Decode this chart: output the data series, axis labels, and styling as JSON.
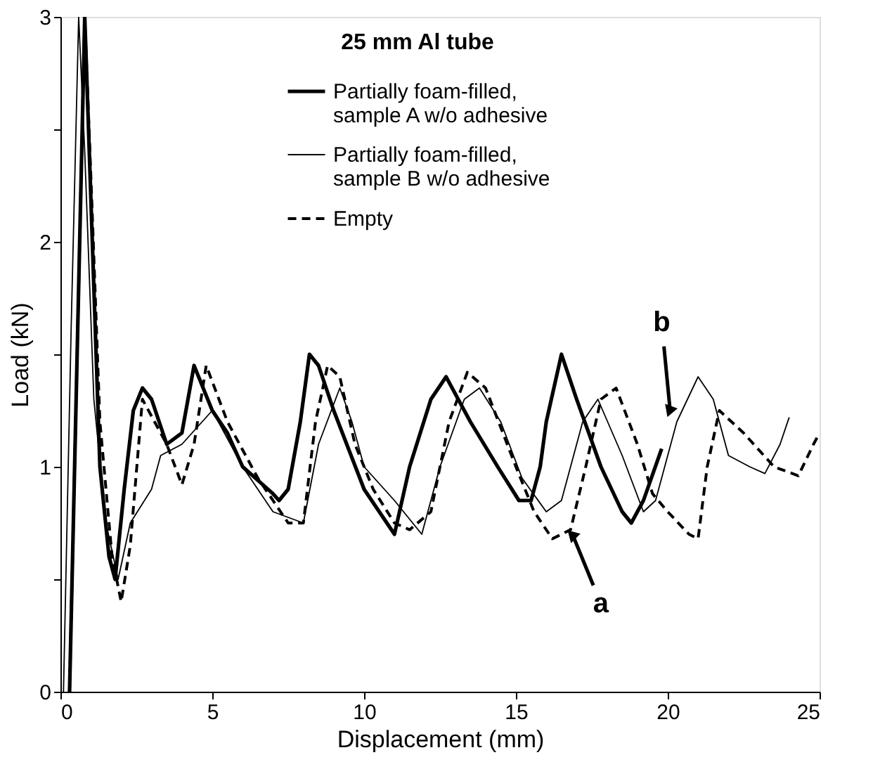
{
  "chart_data": {
    "type": "line",
    "xlabel": "Displacement (mm)",
    "ylabel": "Load (kN)",
    "legend_title": "25 mm Al tube",
    "legend": "top",
    "grid": false,
    "xlim": [
      0,
      25
    ],
    "ylim": [
      0,
      3
    ],
    "xticks": [
      0,
      5,
      10,
      15,
      20,
      25
    ],
    "yticks": [
      0,
      {
        "value": 0.5,
        "label": null
      },
      1,
      {
        "value": 1.5,
        "label": null
      },
      2,
      {
        "value": 2.5,
        "label": null
      },
      3
    ],
    "series": [
      {
        "name": "Partially foam-filled, sample A w/o adhesive",
        "color": "#000000",
        "line_style": "solid",
        "x": [
          0.3,
          0.55,
          0.8,
          1.0,
          1.3,
          1.6,
          1.8,
          2.1,
          2.4,
          2.7,
          3.0,
          3.5,
          4.0,
          4.4,
          5.0,
          5.5,
          6.0,
          7.0,
          7.2,
          7.5,
          7.9,
          8.2,
          8.5,
          9.0,
          10.0,
          10.5,
          11.0,
          11.5,
          12.2,
          12.7,
          13.5,
          14.4,
          15.1,
          15.5,
          15.8,
          16.0,
          16.5,
          17.0,
          17.8,
          18.5,
          18.8,
          19.2,
          19.8
        ],
        "values": [
          0,
          1.5,
          3,
          2.2,
          1.0,
          0.6,
          0.5,
          0.9,
          1.25,
          1.35,
          1.3,
          1.1,
          1.15,
          1.45,
          1.25,
          1.15,
          1.0,
          0.88,
          0.85,
          0.9,
          1.2,
          1.5,
          1.45,
          1.25,
          0.9,
          0.8,
          0.7,
          1.0,
          1.3,
          1.4,
          1.2,
          1.0,
          0.85,
          0.85,
          1.0,
          1.2,
          1.5,
          1.3,
          1.0,
          0.8,
          0.75,
          0.85,
          1.08
        ]
      },
      {
        "name": "Partially foam-filled, sample B w/o adhesive",
        "color": "#000000",
        "line_style": "solid",
        "x": [
          0.1,
          0.35,
          0.6,
          0.8,
          1.1,
          1.5,
          1.9,
          2.3,
          3.0,
          3.3,
          4.0,
          5.0,
          6.0,
          7.0,
          8.0,
          8.5,
          9.2,
          9.6,
          10.0,
          11.0,
          11.9,
          12.5,
          13.3,
          13.8,
          14.5,
          15.2,
          16.0,
          16.5,
          17.2,
          17.7,
          18.5,
          19.2,
          19.6,
          20.3,
          21.0,
          21.5,
          22.0,
          22.7,
          23.2,
          23.7,
          24.0
        ],
        "values": [
          0,
          1.6,
          3,
          2.4,
          1.3,
          0.75,
          0.5,
          0.75,
          0.9,
          1.05,
          1.1,
          1.25,
          1.0,
          0.8,
          0.75,
          1.1,
          1.35,
          1.2,
          1.0,
          0.85,
          0.7,
          1.0,
          1.3,
          1.35,
          1.2,
          0.95,
          0.8,
          0.85,
          1.2,
          1.3,
          1.05,
          0.8,
          0.85,
          1.2,
          1.4,
          1.3,
          1.05,
          1.0,
          0.97,
          1.1,
          1.22
        ]
      },
      {
        "name": "Empty",
        "color": "#000000",
        "line_style": "dashed",
        "x": [
          0.3,
          0.55,
          0.8,
          1.0,
          1.3,
          1.7,
          2.0,
          2.3,
          2.7,
          3.5,
          4.0,
          4.4,
          4.8,
          5.5,
          6.5,
          7.5,
          8.0,
          8.4,
          8.8,
          9.2,
          9.7,
          10.3,
          11.0,
          11.5,
          12.2,
          12.8,
          13.4,
          14.0,
          15.0,
          15.6,
          16.2,
          16.8,
          17.3,
          17.8,
          18.3,
          19.0,
          19.5,
          20.0,
          20.7,
          21.0,
          21.3,
          21.7,
          22.5,
          23.5,
          24.3,
          24.8,
          25.0
        ],
        "values": [
          0,
          1.5,
          3,
          2.3,
          1.2,
          0.6,
          0.4,
          0.65,
          1.3,
          1.1,
          0.92,
          1.1,
          1.45,
          1.2,
          0.95,
          0.75,
          0.75,
          1.2,
          1.45,
          1.4,
          1.1,
          0.9,
          0.75,
          0.72,
          0.8,
          1.2,
          1.42,
          1.35,
          1.0,
          0.8,
          0.68,
          0.72,
          1.0,
          1.3,
          1.35,
          1.1,
          0.88,
          0.8,
          0.7,
          0.68,
          1.0,
          1.25,
          1.15,
          1.0,
          0.96,
          1.1,
          1.15
        ]
      }
    ],
    "annotations": [
      {
        "text": "a",
        "x": 16.8,
        "y": 0.72
      },
      {
        "text": "b",
        "x": 20.1,
        "y": 1.22
      }
    ]
  }
}
